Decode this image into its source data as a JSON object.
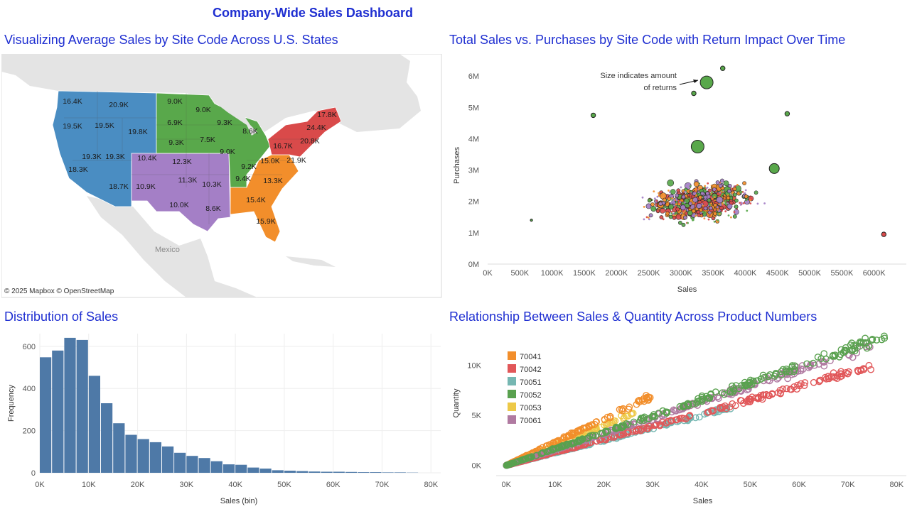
{
  "dashboard_title": "Company-Wide Sales Dashboard",
  "colors": {
    "title": "#1f2fd1",
    "region_west": "#4a8dc2",
    "region_central_north": "#59a84b",
    "region_central_south": "#a47fc6",
    "region_northeast": "#d94a4a",
    "region_southeast": "#f28e2b",
    "histogram_bar": "#4e79a7"
  },
  "map_panel": {
    "title": "Visualizing Average Sales by Site Code Across U.S. States",
    "country_label": "Mexico",
    "attribution_mapbox": "© 2025 Mapbox",
    "attribution_osm": "© OpenStreetMap",
    "state_labels": [
      {
        "state": "WA",
        "value": "16.4K"
      },
      {
        "state": "MT",
        "value": "20.9K"
      },
      {
        "state": "OR",
        "value": "19.5K"
      },
      {
        "state": "ID",
        "value": "19.5K"
      },
      {
        "state": "WY",
        "value": "19.8K"
      },
      {
        "state": "NV",
        "value": "19.3K"
      },
      {
        "state": "UT",
        "value": "19.3K"
      },
      {
        "state": "CA",
        "value": "18.3K"
      },
      {
        "state": "AZ",
        "value": "18.7K"
      },
      {
        "state": "CO",
        "value": "10.4K"
      },
      {
        "state": "NM",
        "value": "10.9K"
      },
      {
        "state": "KS",
        "value": "12.3K"
      },
      {
        "state": "OK",
        "value": "11.3K"
      },
      {
        "state": "TX",
        "value": "10.0K"
      },
      {
        "state": "AR",
        "value": "10.3K"
      },
      {
        "state": "LA",
        "value": "8.6K"
      },
      {
        "state": "ND",
        "value": "9.0K"
      },
      {
        "state": "SD",
        "value": "6.9K"
      },
      {
        "state": "NE",
        "value": "9.3K"
      },
      {
        "state": "MN",
        "value": "9.0K"
      },
      {
        "state": "IA",
        "value": "7.5K"
      },
      {
        "state": "WI",
        "value": "9.3K"
      },
      {
        "state": "MI",
        "value": "8.6K"
      },
      {
        "state": "IL",
        "value": "9.0K"
      },
      {
        "state": "KY",
        "value": "9.2K"
      },
      {
        "state": "TN",
        "value": "9.4K"
      },
      {
        "state": "VA",
        "value": "15.0K"
      },
      {
        "state": "NC",
        "value": "21.9K"
      },
      {
        "state": "SC",
        "value": "13.3K"
      },
      {
        "state": "GA",
        "value": "15.4K"
      },
      {
        "state": "FL",
        "value": "15.9K"
      },
      {
        "state": "PA",
        "value": "16.7K"
      },
      {
        "state": "NY",
        "value": "24.4K"
      },
      {
        "state": "NJ",
        "value": "20.8K"
      },
      {
        "state": "ME",
        "value": "17.8K"
      }
    ]
  },
  "chart_data": [
    {
      "id": "scatter_purchases",
      "type": "scatter",
      "title": "Total Sales vs. Purchases by Site Code with Return Impact Over Time",
      "xlabel": "Sales",
      "ylabel": "Purchases",
      "x_ticks": [
        "0K",
        "500K",
        "1000K",
        "1500K",
        "2000K",
        "2500K",
        "3000K",
        "3500K",
        "4000K",
        "4500K",
        "5000K",
        "5500K",
        "6000K"
      ],
      "y_ticks": [
        "0M",
        "1M",
        "2M",
        "3M",
        "4M",
        "5M",
        "6M"
      ],
      "xlim": [
        0,
        6500000
      ],
      "ylim": [
        0,
        6300000
      ],
      "annotation": [
        "Size indicates amount",
        "of returns"
      ],
      "series_colors": [
        "#59a84b",
        "#f28e2b",
        "#a47fc6",
        "#d94a4a"
      ],
      "highlight_points": [
        {
          "x": 3400000,
          "y": 5800000,
          "size": "large",
          "color": "#59a84b"
        },
        {
          "x": 3650000,
          "y": 6250000,
          "size": "small",
          "color": "#59a84b"
        },
        {
          "x": 3200000,
          "y": 5450000,
          "size": "small",
          "color": "#59a84b"
        },
        {
          "x": 1640000,
          "y": 4750000,
          "size": "small",
          "color": "#59a84b"
        },
        {
          "x": 3260000,
          "y": 3750000,
          "size": "large",
          "color": "#59a84b"
        },
        {
          "x": 4450000,
          "y": 3050000,
          "size": "medium",
          "color": "#59a84b"
        },
        {
          "x": 6150000,
          "y": 950000,
          "size": "small",
          "color": "#d94a4a"
        },
        {
          "x": 4650000,
          "y": 4800000,
          "size": "small",
          "color": "#59a84b"
        },
        {
          "x": 680000,
          "y": 1400000,
          "size": "tiny",
          "color": "#59a84b"
        }
      ],
      "cluster": {
        "x_center": 3300000,
        "y_center": 2000000,
        "x_spread": 900000,
        "y_spread": 800000
      }
    },
    {
      "id": "histogram_sales",
      "type": "bar",
      "title": "Distribution of Sales",
      "xlabel": "Sales (bin)",
      "ylabel": "Frequency",
      "x_ticks": [
        "0K",
        "10K",
        "20K",
        "30K",
        "40K",
        "50K",
        "60K",
        "70K",
        "80K"
      ],
      "y_ticks": [
        "0",
        "200",
        "400",
        "600"
      ],
      "bin_width": 2500,
      "xlim": [
        0,
        82000
      ],
      "ylim": [
        0,
        660
      ],
      "values": [
        548,
        580,
        640,
        630,
        460,
        330,
        235,
        180,
        160,
        145,
        125,
        95,
        80,
        70,
        55,
        40,
        38,
        25,
        20,
        12,
        10,
        8,
        6,
        5,
        5,
        4,
        3,
        3,
        2,
        2,
        1
      ]
    },
    {
      "id": "scatter_quantity",
      "type": "scatter",
      "title": "Relationship Between Sales & Quantity Across Product Numbers",
      "xlabel": "Sales",
      "ylabel": "Quantity",
      "x_ticks": [
        "0K",
        "10K",
        "20K",
        "30K",
        "40K",
        "50K",
        "60K",
        "70K",
        "80K"
      ],
      "y_ticks": [
        "0K",
        "5K",
        "10K"
      ],
      "xlim": [
        -1500,
        82000
      ],
      "ylim": [
        -600,
        13000
      ],
      "legend_position": "top-left",
      "series": [
        {
          "name": "70041",
          "color": "#f28e2b",
          "slope": 0.232,
          "xmax": 30000
        },
        {
          "name": "70042",
          "color": "#e15759",
          "slope": 0.131,
          "xmax": 75000
        },
        {
          "name": "70051",
          "color": "#76b7b2",
          "slope": 0.125,
          "xmax": 46000
        },
        {
          "name": "70052",
          "color": "#59a14f",
          "slope": 0.165,
          "xmax": 78000
        },
        {
          "name": "70053",
          "color": "#edc948",
          "slope": 0.2,
          "xmax": 26000
        },
        {
          "name": "70061",
          "color": "#b07aa1",
          "slope": 0.158,
          "xmax": 76000
        }
      ]
    }
  ]
}
